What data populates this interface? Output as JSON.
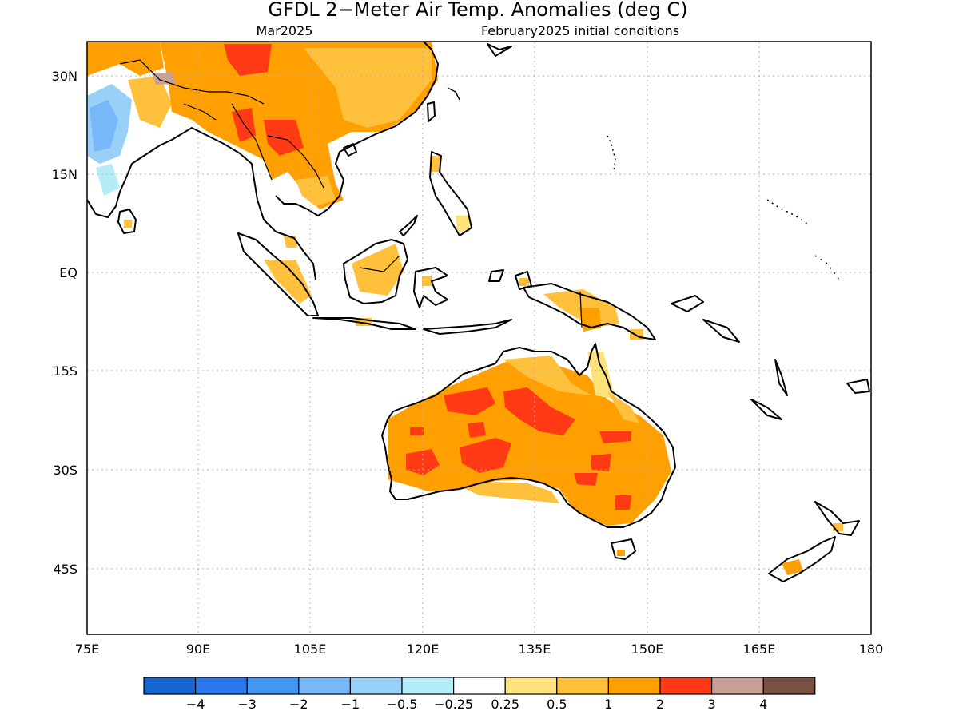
{
  "title": "GFDL 2−Meter Air Temp. Anomalies (deg C)",
  "subtitle_left": "Mar2025",
  "subtitle_right": "February2025 initial conditions",
  "lat_labels": [
    "30N",
    "15N",
    "EQ",
    "15S",
    "30S",
    "45S"
  ],
  "lon_labels": [
    "75E",
    "90E",
    "105E",
    "120E",
    "135E",
    "150E",
    "165E",
    "180"
  ],
  "colorbar": {
    "colors": [
      "#1565d0",
      "#2a78ec",
      "#4496f4",
      "#78b8f8",
      "#98d0f8",
      "#b4ecf8",
      "#ffffff",
      "#ffe37a",
      "#ffc03c",
      "#ffa000",
      "#ff3a14",
      "#c8a096",
      "#7a5044"
    ],
    "labels": [
      "−4",
      "−3",
      "−2",
      "−1",
      "−0.5",
      "−0.25",
      "0.25",
      "0.5",
      "1",
      "2",
      "3",
      "4"
    ]
  },
  "colors": {
    "land_outline": "#000000",
    "grid": "#b0b0b0"
  }
}
